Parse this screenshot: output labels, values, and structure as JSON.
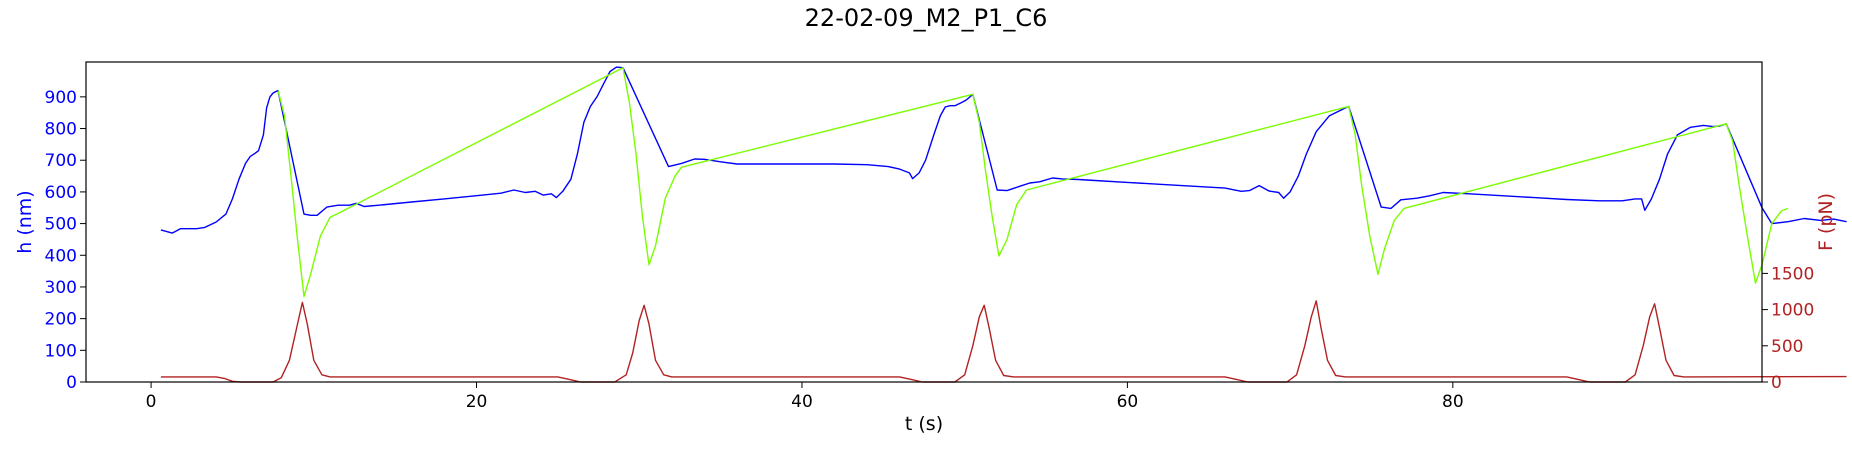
{
  "chart_data": {
    "type": "line",
    "title": "22-02-09_M2_P1_C6",
    "xlabel": "t (s)",
    "ylabel_left": "h (nm)",
    "ylabel_right": "F (pN)",
    "xlim": [
      -4,
      99
    ],
    "ylim_left": [
      0,
      1010
    ],
    "ylim_right": [
      0,
      4420
    ],
    "x_ticks": [
      0,
      20,
      40,
      60,
      80
    ],
    "y_ticks_left": [
      0,
      100,
      200,
      300,
      400,
      500,
      600,
      700,
      800,
      900
    ],
    "y_ticks_right": [
      0,
      500,
      1000,
      1500
    ],
    "grid": false,
    "colors": {
      "height": "#0000ff",
      "height_highlight": "#7cfc00",
      "force": "#b22222",
      "axis": "#000000"
    },
    "series": [
      {
        "axis": "left",
        "color": "#0000ff",
        "points": [
          [
            0.6,
            480
          ],
          [
            1.3,
            470
          ],
          [
            1.8,
            484
          ],
          [
            2.8,
            484
          ],
          [
            3.3,
            488
          ],
          [
            4.0,
            505
          ],
          [
            4.6,
            530
          ],
          [
            5.0,
            578
          ],
          [
            5.4,
            640
          ],
          [
            5.8,
            690
          ],
          [
            6.1,
            712
          ],
          [
            6.4,
            722
          ],
          [
            6.6,
            730
          ],
          [
            6.9,
            780
          ],
          [
            7.1,
            865
          ],
          [
            7.3,
            900
          ],
          [
            7.5,
            912
          ],
          [
            7.8,
            920
          ],
          [
            9.4,
            530
          ],
          [
            9.8,
            526
          ],
          [
            10.2,
            526
          ],
          [
            10.8,
            552
          ],
          [
            11.5,
            558
          ],
          [
            12.2,
            558
          ],
          [
            12.6,
            564
          ],
          [
            13.1,
            554
          ],
          [
            14.0,
            558
          ],
          [
            16,
            568
          ],
          [
            18,
            578
          ],
          [
            20,
            588
          ],
          [
            21.5,
            596
          ],
          [
            22.3,
            606
          ],
          [
            23.0,
            598
          ],
          [
            23.6,
            602
          ],
          [
            24.1,
            590
          ],
          [
            24.6,
            594
          ],
          [
            24.9,
            582
          ],
          [
            25.3,
            602
          ],
          [
            25.8,
            640
          ],
          [
            26.2,
            720
          ],
          [
            26.6,
            820
          ],
          [
            27.0,
            870
          ],
          [
            27.4,
            900
          ],
          [
            27.8,
            940
          ],
          [
            28.2,
            980
          ],
          [
            28.6,
            994
          ],
          [
            29.0,
            992
          ],
          [
            31.8,
            680
          ],
          [
            32.6,
            690
          ],
          [
            33.4,
            704
          ],
          [
            34.0,
            703
          ],
          [
            35.0,
            695
          ],
          [
            36.0,
            688
          ],
          [
            38,
            688
          ],
          [
            40,
            688
          ],
          [
            42,
            688
          ],
          [
            44,
            686
          ],
          [
            45.3,
            680
          ],
          [
            46.0,
            672
          ],
          [
            46.6,
            660
          ],
          [
            46.8,
            642
          ],
          [
            47.2,
            660
          ],
          [
            47.6,
            700
          ],
          [
            48.1,
            780
          ],
          [
            48.5,
            840
          ],
          [
            48.8,
            868
          ],
          [
            49.1,
            872
          ],
          [
            49.4,
            872
          ],
          [
            49.8,
            882
          ],
          [
            50.1,
            890
          ],
          [
            50.5,
            908
          ],
          [
            52.0,
            606
          ],
          [
            52.6,
            604
          ],
          [
            53.4,
            618
          ],
          [
            54.0,
            628
          ],
          [
            54.6,
            632
          ],
          [
            55.4,
            644
          ],
          [
            56.0,
            641
          ],
          [
            57,
            639
          ],
          [
            58,
            636
          ],
          [
            60,
            630
          ],
          [
            62,
            624
          ],
          [
            64,
            618
          ],
          [
            66,
            612
          ],
          [
            67.0,
            602
          ],
          [
            67.5,
            604
          ],
          [
            68.1,
            620
          ],
          [
            68.7,
            603
          ],
          [
            69.3,
            598
          ],
          [
            69.6,
            580
          ],
          [
            70.0,
            600
          ],
          [
            70.5,
            650
          ],
          [
            71.0,
            720
          ],
          [
            71.6,
            790
          ],
          [
            72.4,
            840
          ],
          [
            73.2,
            860
          ],
          [
            73.6,
            870
          ],
          [
            75.6,
            552
          ],
          [
            76.2,
            548
          ],
          [
            76.8,
            575
          ],
          [
            77.8,
            580
          ],
          [
            78.6,
            588
          ],
          [
            79.4,
            598
          ],
          [
            81,
            594
          ],
          [
            83,
            588
          ],
          [
            85,
            582
          ],
          [
            87,
            576
          ],
          [
            89,
            572
          ],
          [
            90.4,
            572
          ],
          [
            91.2,
            578
          ],
          [
            91.6,
            578
          ],
          [
            91.8,
            542
          ],
          [
            92.2,
            578
          ],
          [
            92.7,
            640
          ],
          [
            93.2,
            720
          ],
          [
            93.8,
            780
          ],
          [
            94.6,
            804
          ],
          [
            95.4,
            810
          ],
          [
            96.0,
            806
          ],
          [
            96.4,
            808
          ],
          [
            96.8,
            815
          ],
          [
            99.0,
            550
          ],
          [
            99.6,
            500
          ],
          [
            100.6,
            506
          ],
          [
            101.6,
            516
          ],
          [
            102.6,
            510
          ],
          [
            103.4,
            514
          ],
          [
            104.2,
            506
          ]
        ]
      },
      {
        "axis": "left",
        "color": "#7cfc00",
        "points": [
          [
            7.8,
            920
          ],
          [
            8.2,
            840
          ],
          [
            8.6,
            650
          ],
          [
            9.0,
            450
          ],
          [
            9.4,
            270
          ],
          [
            9.8,
            340
          ],
          [
            10.4,
            460
          ],
          [
            11.0,
            520
          ],
          [
            11.5,
            532
          ],
          [
            29.0,
            992
          ],
          [
            29.4,
            880
          ],
          [
            29.8,
            720
          ],
          [
            30.2,
            520
          ],
          [
            30.6,
            370
          ],
          [
            31.0,
            430
          ],
          [
            31.6,
            580
          ],
          [
            32.2,
            650
          ],
          [
            32.6,
            678
          ],
          [
            50.5,
            908
          ],
          [
            50.9,
            820
          ],
          [
            51.3,
            660
          ],
          [
            51.7,
            520
          ],
          [
            52.1,
            398
          ],
          [
            52.6,
            450
          ],
          [
            53.2,
            560
          ],
          [
            53.8,
            606
          ],
          [
            73.6,
            870
          ],
          [
            74.0,
            780
          ],
          [
            74.4,
            620
          ],
          [
            74.9,
            460
          ],
          [
            75.4,
            340
          ],
          [
            75.8,
            420
          ],
          [
            76.4,
            510
          ],
          [
            77.0,
            548
          ],
          [
            96.8,
            815
          ],
          [
            97.2,
            760
          ],
          [
            97.6,
            620
          ],
          [
            98.1,
            460
          ],
          [
            98.6,
            312
          ],
          [
            99.0,
            370
          ],
          [
            99.6,
            500
          ],
          [
            100.2,
            540
          ],
          [
            100.6,
            548
          ]
        ]
      },
      {
        "axis": "right",
        "color": "#b22222",
        "points": [
          [
            0.6,
            70
          ],
          [
            4.0,
            70
          ],
          [
            4.5,
            50
          ],
          [
            5.0,
            10
          ],
          [
            5.5,
            0
          ],
          [
            7.5,
            0
          ],
          [
            8.0,
            60
          ],
          [
            8.5,
            300
          ],
          [
            9.0,
            800
          ],
          [
            9.3,
            1100
          ],
          [
            9.6,
            800
          ],
          [
            10.0,
            300
          ],
          [
            10.5,
            100
          ],
          [
            11.0,
            70
          ],
          [
            25.0,
            70
          ],
          [
            25.6,
            40
          ],
          [
            26.4,
            0
          ],
          [
            28.5,
            0
          ],
          [
            29.2,
            100
          ],
          [
            29.6,
            400
          ],
          [
            30.0,
            850
          ],
          [
            30.3,
            1060
          ],
          [
            30.6,
            800
          ],
          [
            31.0,
            300
          ],
          [
            31.5,
            100
          ],
          [
            32.0,
            70
          ],
          [
            46.0,
            70
          ],
          [
            46.6,
            40
          ],
          [
            47.4,
            0
          ],
          [
            49.4,
            0
          ],
          [
            50.0,
            100
          ],
          [
            50.5,
            500
          ],
          [
            50.9,
            900
          ],
          [
            51.2,
            1060
          ],
          [
            51.5,
            750
          ],
          [
            51.9,
            300
          ],
          [
            52.4,
            90
          ],
          [
            53.0,
            70
          ],
          [
            66.0,
            70
          ],
          [
            66.6,
            40
          ],
          [
            67.4,
            0
          ],
          [
            69.8,
            0
          ],
          [
            70.4,
            100
          ],
          [
            70.9,
            500
          ],
          [
            71.3,
            900
          ],
          [
            71.6,
            1120
          ],
          [
            71.9,
            750
          ],
          [
            72.3,
            300
          ],
          [
            72.8,
            90
          ],
          [
            73.4,
            70
          ],
          [
            87.0,
            70
          ],
          [
            87.6,
            40
          ],
          [
            88.4,
            0
          ],
          [
            90.6,
            0
          ],
          [
            91.2,
            100
          ],
          [
            91.7,
            500
          ],
          [
            92.1,
            900
          ],
          [
            92.4,
            1080
          ],
          [
            92.7,
            750
          ],
          [
            93.1,
            300
          ],
          [
            93.6,
            90
          ],
          [
            94.2,
            70
          ],
          [
            104.2,
            75
          ]
        ]
      }
    ]
  }
}
